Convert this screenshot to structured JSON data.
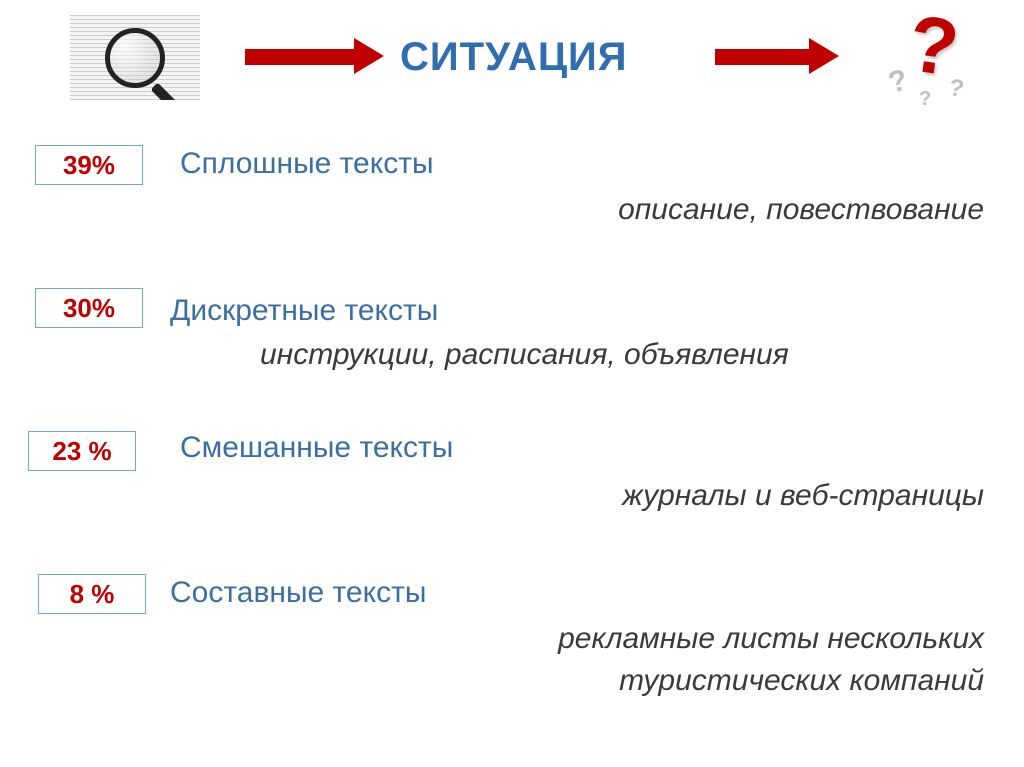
{
  "colors": {
    "title": "#2f6eaf",
    "arrow": "#c00000",
    "qmark_big": "#c00000",
    "pct_text": "#c00000",
    "pct_border": "#6fa8dc",
    "heading": "#3b6fa3",
    "desc": "#3a3a3a"
  },
  "title": "СИТУАЦИЯ",
  "rows": [
    {
      "pct": "39%",
      "heading": "Сплошные тексты",
      "desc": "описание, повествование"
    },
    {
      "pct": "30%",
      "heading": "Дискретные тексты",
      "desc": "инструкции, расписания, объявления"
    },
    {
      "pct": "23 %",
      "heading": "Смешанные тексты",
      "desc": "журналы и веб-страницы"
    },
    {
      "pct": "8 %",
      "heading": "Составные тексты",
      "desc_line1": "рекламные листы нескольких",
      "desc_line2": "туристических компаний"
    }
  ],
  "fonts": {
    "title_size": 40,
    "heading_size": 30,
    "desc_size": 30,
    "pct_size": 26
  }
}
